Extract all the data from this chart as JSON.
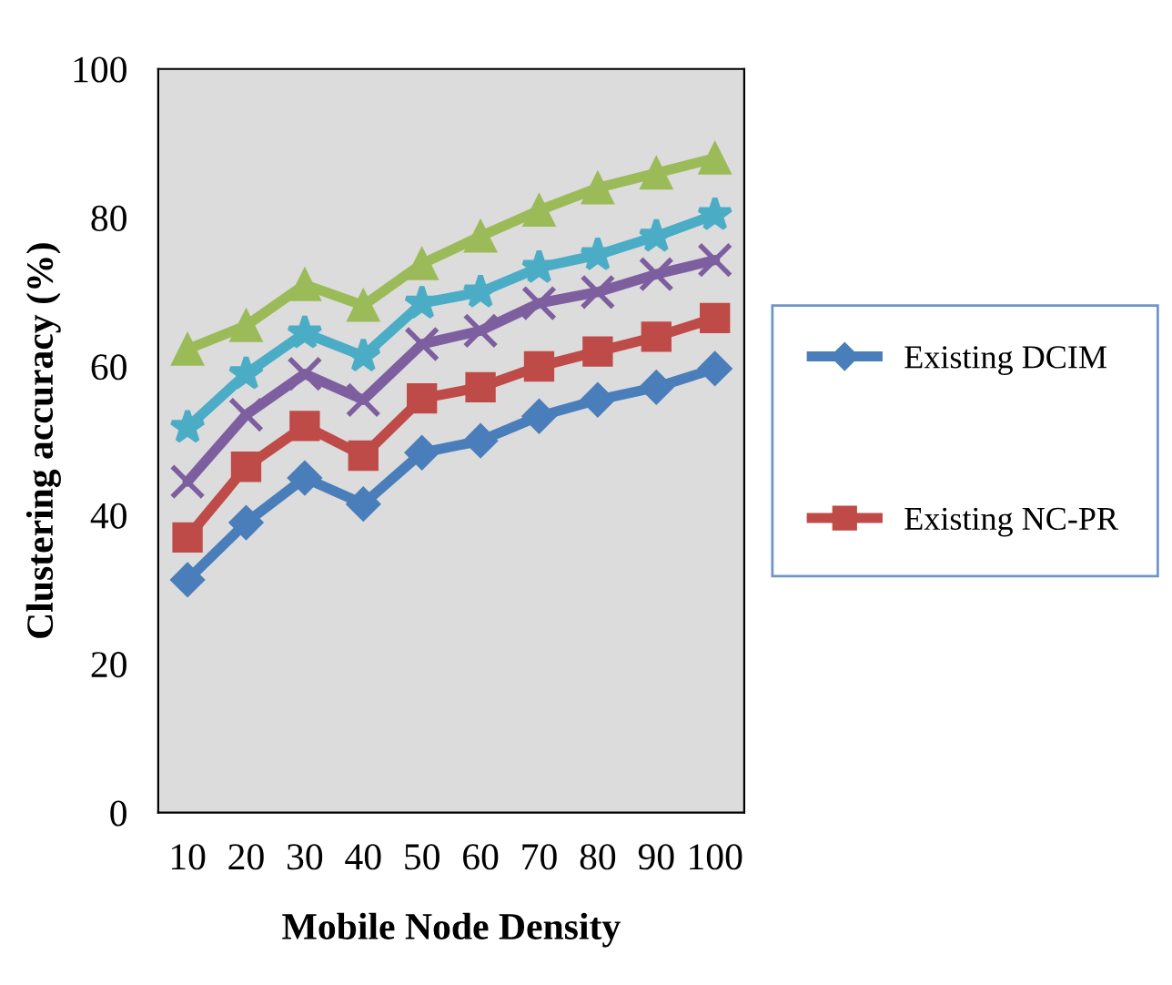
{
  "chart_data": {
    "type": "line",
    "xlabel": "Mobile Node Density",
    "ylabel": "Clustering accuracy (%)",
    "categories": [
      "10",
      "20",
      "30",
      "40",
      "50",
      "60",
      "70",
      "80",
      "90",
      "100"
    ],
    "ylim": [
      0,
      100
    ],
    "yticks": [
      0,
      20,
      40,
      60,
      80,
      100
    ],
    "grid": false,
    "legend": "right",
    "series": [
      {
        "name": "Existing DCIM",
        "color": "#4a7ebb",
        "marker": "diamond",
        "values": [
          31.3,
          39,
          45,
          41.5,
          48.4,
          50,
          53.3,
          55.5,
          57.2,
          59.7
        ]
      },
      {
        "name": "Existing NC-PR",
        "color": "#be4b48",
        "marker": "square",
        "values": [
          37,
          46.5,
          52,
          48,
          55.7,
          57.2,
          60,
          62,
          64,
          66.5
        ]
      },
      {
        "color": "#7d5fa0",
        "marker": "cross",
        "values": [
          44.5,
          53.5,
          59,
          55.5,
          63,
          64.8,
          68.5,
          70,
          72.4,
          74.3
        ]
      },
      {
        "color": "#4bacc6",
        "marker": "star",
        "values": [
          51.8,
          59,
          64.5,
          61.4,
          68.5,
          70,
          73.3,
          75,
          77.5,
          80.4
        ]
      },
      {
        "color": "#9bbb59",
        "marker": "triangle",
        "values": [
          62.3,
          65.5,
          71,
          68.2,
          73.8,
          77.5,
          81,
          84,
          86,
          88
        ]
      }
    ]
  }
}
